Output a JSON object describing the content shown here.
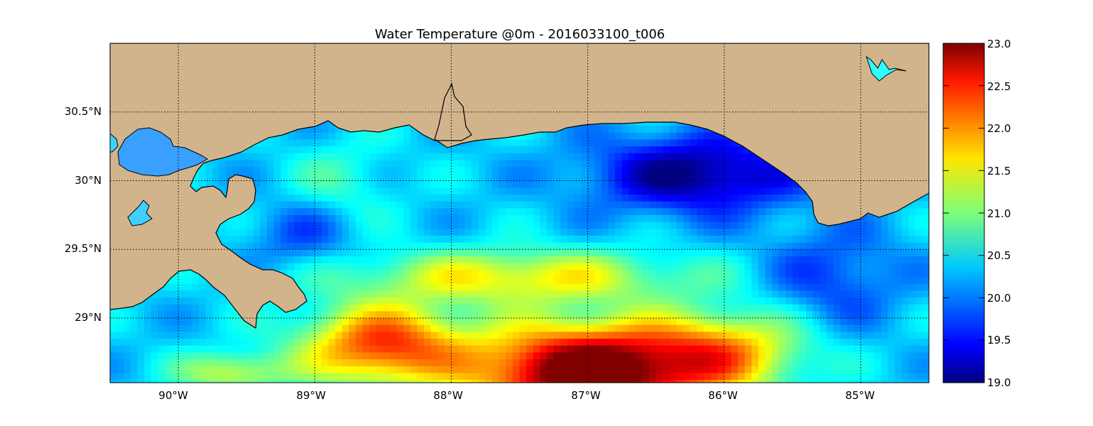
{
  "title": "Water Temperature @0m - 2016033100_t006",
  "lon_labels": [
    "90°W",
    "89°W",
    "88°W",
    "87°W",
    "86°W",
    "85°W"
  ],
  "lat_labels": [
    "30.5°N",
    "30°N",
    "29.5°N",
    "29°N"
  ],
  "colorbar": {
    "min": 19.0,
    "max": 23.0,
    "tick_labels": [
      "23.0",
      "22.5",
      "22.0",
      "21.5",
      "21.0",
      "20.5",
      "20.0",
      "19.5",
      "19.0"
    ],
    "colormap": "jet"
  },
  "colors": {
    "land": "#d2b48c",
    "frame": "#000000"
  },
  "chart_data": {
    "type": "heatmap",
    "title": "Water Temperature @0m - 2016033100_t006",
    "xlabel": "",
    "ylabel": "",
    "x_ticks": [
      -90,
      -89,
      -88,
      -87,
      -86,
      -85
    ],
    "y_ticks": [
      30.5,
      30.0,
      29.5,
      29.0
    ],
    "xlim": [
      -90.5,
      -84.5
    ],
    "ylim": [
      28.53,
      31.0
    ],
    "value_range": [
      19.0,
      23.0
    ],
    "grid": true,
    "legend": "colorbar-right"
  }
}
